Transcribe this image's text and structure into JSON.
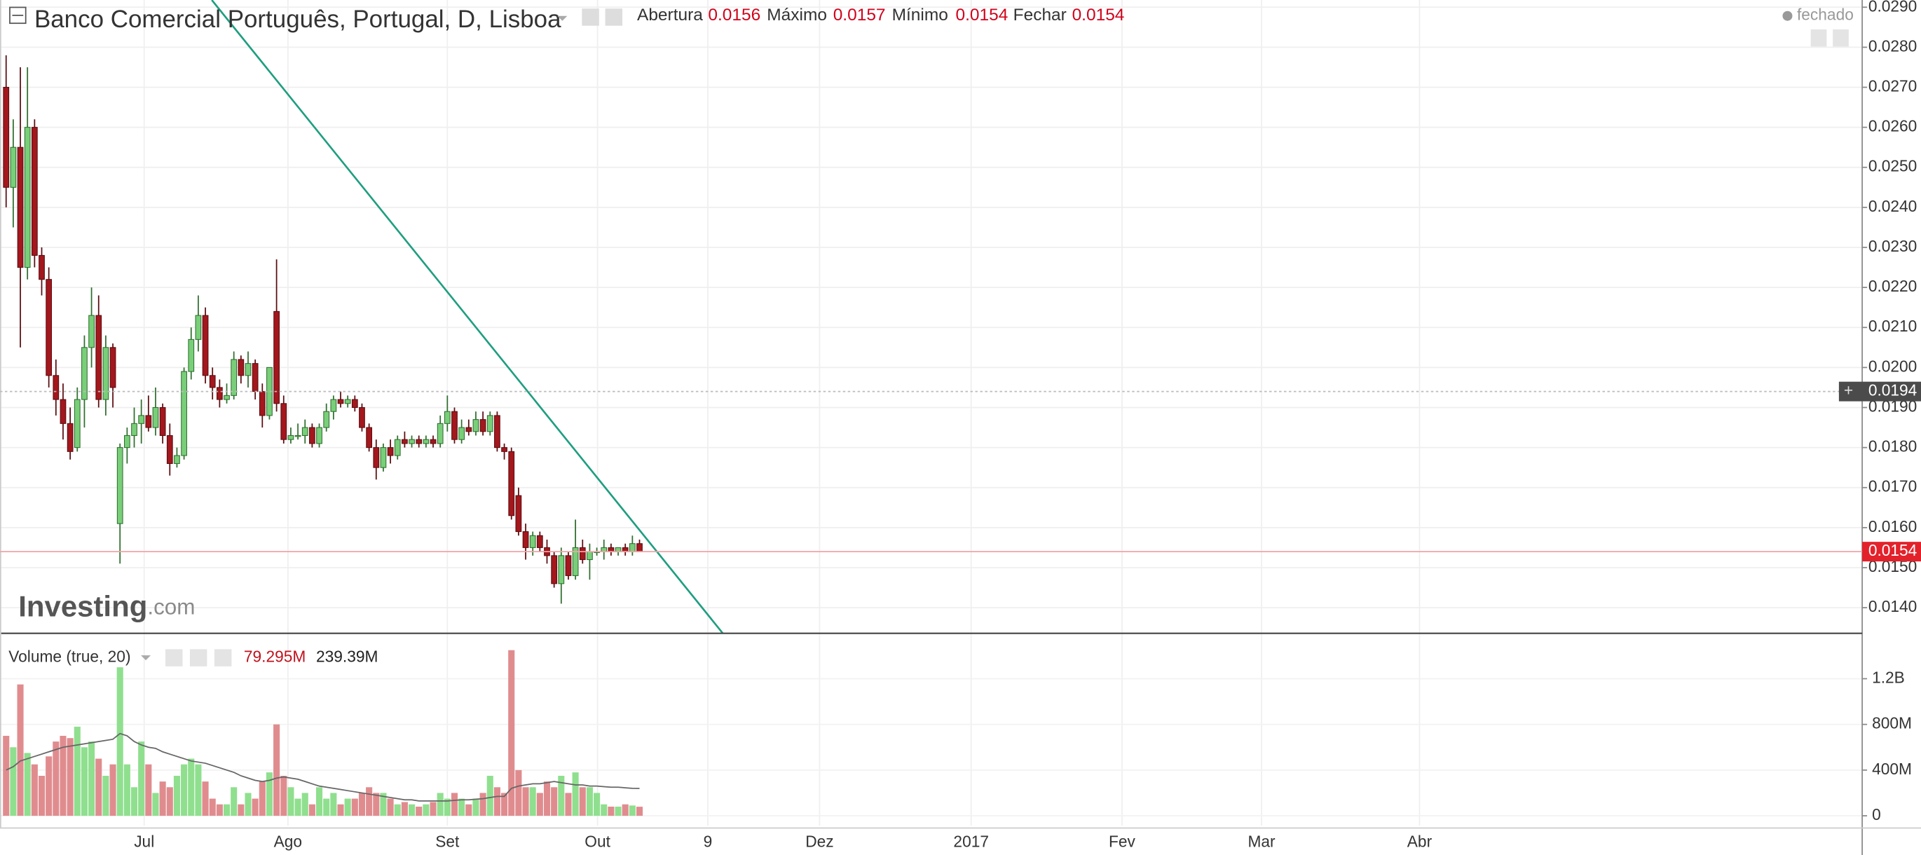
{
  "chart_data": [
    {
      "type": "candlestick",
      "title": "Banco Comercial Português, Portugal, D, Lisboa",
      "ohlc_labels": [
        "Abertura",
        "Máximo",
        "Mínimo",
        "Fechar"
      ],
      "status": "fechado",
      "watermark": [
        "Investing",
        ".com"
      ],
      "up_color": "#79cf79",
      "down_color": "#a3171d",
      "open": [
        0.027,
        0.0245,
        0.0255,
        0.0225,
        0.026,
        0.0228,
        0.0222,
        0.0198,
        0.0192,
        0.0186,
        0.018,
        0.0192,
        0.0205,
        0.0213,
        0.0192,
        0.0205,
        0.0161,
        0.018,
        0.0183,
        0.0186,
        0.0188,
        0.0185,
        0.019,
        0.0183,
        0.0176,
        0.0178,
        0.0199,
        0.0207,
        0.0213,
        0.0198,
        0.0195,
        0.0192,
        0.0193,
        0.0202,
        0.0198,
        0.0201,
        0.0194,
        0.0188,
        0.0214,
        0.0191,
        0.0182,
        0.0183,
        0.0183,
        0.0185,
        0.0181,
        0.0185,
        0.0189,
        0.0192,
        0.0191,
        0.0192,
        0.019,
        0.0185,
        0.018,
        0.0175,
        0.018,
        0.0178,
        0.0182,
        0.0181,
        0.0182,
        0.0181,
        0.0182,
        0.0181,
        0.0186,
        0.0189,
        0.0182,
        0.0185,
        0.0184,
        0.0187,
        0.0184,
        0.0188,
        0.018,
        0.0179,
        0.0168,
        0.0159,
        0.0155,
        0.0158,
        0.0155,
        0.0153,
        0.0146,
        0.0153,
        0.0148,
        0.0155,
        0.0152,
        0.0154,
        0.0154,
        0.0155,
        0.0154,
        0.0155,
        0.0154,
        0.0156
      ],
      "high": [
        0.0278,
        0.0262,
        0.0275,
        0.0275,
        0.0262,
        0.023,
        0.0225,
        0.0202,
        0.0196,
        0.019,
        0.0195,
        0.0208,
        0.022,
        0.0218,
        0.0208,
        0.0206,
        0.0181,
        0.0185,
        0.019,
        0.0192,
        0.0193,
        0.0195,
        0.0191,
        0.0186,
        0.018,
        0.02,
        0.021,
        0.0218,
        0.0215,
        0.02,
        0.0197,
        0.0196,
        0.0204,
        0.0203,
        0.0204,
        0.0202,
        0.0196,
        0.02,
        0.0227,
        0.0193,
        0.0185,
        0.0186,
        0.0187,
        0.0186,
        0.0186,
        0.0191,
        0.0193,
        0.0194,
        0.0193,
        0.0193,
        0.0191,
        0.0186,
        0.0182,
        0.0181,
        0.0182,
        0.0183,
        0.0184,
        0.0183,
        0.0183,
        0.0183,
        0.0183,
        0.0188,
        0.0193,
        0.019,
        0.0187,
        0.0187,
        0.0189,
        0.0189,
        0.0189,
        0.0189,
        0.0181,
        0.018,
        0.017,
        0.0161,
        0.0159,
        0.0159,
        0.0157,
        0.0154,
        0.0155,
        0.0154,
        0.0162,
        0.0157,
        0.0156,
        0.0155,
        0.0157,
        0.0156,
        0.0155,
        0.0156,
        0.0158,
        0.0157
      ],
      "low": [
        0.024,
        0.0235,
        0.0205,
        0.0222,
        0.0225,
        0.0218,
        0.0195,
        0.0188,
        0.0182,
        0.0177,
        0.0179,
        0.0185,
        0.02,
        0.019,
        0.0188,
        0.019,
        0.0151,
        0.0176,
        0.018,
        0.0181,
        0.0184,
        0.0183,
        0.0181,
        0.0173,
        0.0175,
        0.0177,
        0.0197,
        0.0204,
        0.0196,
        0.0192,
        0.019,
        0.0191,
        0.0192,
        0.0196,
        0.0195,
        0.0192,
        0.0185,
        0.0187,
        0.0189,
        0.0181,
        0.0181,
        0.0182,
        0.0181,
        0.018,
        0.018,
        0.0184,
        0.0187,
        0.019,
        0.019,
        0.0189,
        0.0184,
        0.0179,
        0.0172,
        0.0174,
        0.0176,
        0.0177,
        0.018,
        0.018,
        0.018,
        0.018,
        0.018,
        0.018,
        0.0184,
        0.0181,
        0.0181,
        0.0183,
        0.0183,
        0.0183,
        0.0183,
        0.0179,
        0.0177,
        0.0162,
        0.0158,
        0.0152,
        0.0153,
        0.0154,
        0.0151,
        0.0145,
        0.0141,
        0.0147,
        0.0147,
        0.0151,
        0.0147,
        0.0153,
        0.0152,
        0.0153,
        0.0153,
        0.0153,
        0.0153,
        0.0154
      ],
      "close": [
        0.0245,
        0.0255,
        0.0225,
        0.026,
        0.0228,
        0.0222,
        0.0198,
        0.0192,
        0.0186,
        0.0179,
        0.0192,
        0.0205,
        0.0213,
        0.0192,
        0.0205,
        0.0195,
        0.018,
        0.0183,
        0.0186,
        0.0188,
        0.0185,
        0.019,
        0.0183,
        0.0176,
        0.0178,
        0.0199,
        0.0207,
        0.0213,
        0.0198,
        0.0195,
        0.0192,
        0.0193,
        0.0202,
        0.0198,
        0.0201,
        0.0194,
        0.0188,
        0.02,
        0.0191,
        0.0182,
        0.0183,
        0.0183,
        0.0185,
        0.0181,
        0.0185,
        0.0189,
        0.0192,
        0.0191,
        0.0192,
        0.019,
        0.0185,
        0.018,
        0.0175,
        0.018,
        0.0178,
        0.0182,
        0.0181,
        0.0182,
        0.0181,
        0.0182,
        0.0181,
        0.0186,
        0.0189,
        0.0182,
        0.0185,
        0.0184,
        0.0187,
        0.0184,
        0.0188,
        0.018,
        0.0179,
        0.0163,
        0.0159,
        0.0155,
        0.0158,
        0.0155,
        0.0153,
        0.0146,
        0.0153,
        0.0148,
        0.0155,
        0.0152,
        0.0154,
        0.0154,
        0.0155,
        0.0154,
        0.0155,
        0.0154,
        0.0156,
        0.0154
      ],
      "crosshair_value": 0.0194,
      "trendline": {
        "x": [
          28.9,
          100.7
        ],
        "y": [
          0.02918,
          0.01336
        ],
        "color": "#1f9e80"
      },
      "xlim": [
        -0.86,
        260.8
      ],
      "xticks": [
        {
          "value": 19.4,
          "label": "Jul"
        },
        {
          "value": 39.6,
          "label": "Ago"
        },
        {
          "value": 62.0,
          "label": "Set"
        },
        {
          "value": 83.1,
          "label": "Out"
        },
        {
          "value": 98.6,
          "label": "9"
        },
        {
          "value": 114.3,
          "label": "Dez"
        },
        {
          "value": 135.6,
          "label": "2017"
        },
        {
          "value": 156.8,
          "label": "Fev"
        },
        {
          "value": 176.4,
          "label": "Mar"
        },
        {
          "value": 198.6,
          "label": "Abr"
        }
      ],
      "ylim": [
        0.01336,
        0.02918
      ],
      "yticks": [
        {
          "value": 0.014,
          "label": "0.0140"
        },
        {
          "value": 0.015,
          "label": "0.0150"
        },
        {
          "value": 0.016,
          "label": "0.0160"
        },
        {
          "value": 0.017,
          "label": "0.0170"
        },
        {
          "value": 0.018,
          "label": "0.0180"
        },
        {
          "value": 0.019,
          "label": "0.0190"
        },
        {
          "value": 0.02,
          "label": "0.0200"
        },
        {
          "value": 0.021,
          "label": "0.0210"
        },
        {
          "value": 0.022,
          "label": "0.0220"
        },
        {
          "value": 0.023,
          "label": "0.0230"
        },
        {
          "value": 0.024,
          "label": "0.0240"
        },
        {
          "value": 0.025,
          "label": "0.0250"
        },
        {
          "value": 0.026,
          "label": "0.0260"
        },
        {
          "value": 0.027,
          "label": "0.0270"
        },
        {
          "value": 0.028,
          "label": "0.0280"
        },
        {
          "value": 0.029,
          "label": "0.0290"
        }
      ],
      "grid": true
    },
    {
      "type": "bar",
      "title": "Volume (true, 20)",
      "up_color": "#8fdf8f",
      "down_color": "#e08c8f",
      "values": [
        700,
        600,
        1150,
        550,
        450,
        350,
        520,
        650,
        700,
        680,
        780,
        600,
        650,
        500,
        350,
        450,
        1300,
        450,
        250,
        650,
        450,
        200,
        300,
        250,
        350,
        450,
        500,
        450,
        300,
        150,
        100,
        100,
        250,
        100,
        200,
        150,
        300,
        380,
        800,
        350,
        250,
        150,
        200,
        100,
        250,
        150,
        200,
        100,
        150,
        150,
        200,
        250,
        200,
        200,
        150,
        100,
        120,
        100,
        80,
        100,
        120,
        200,
        150,
        200,
        150,
        100,
        150,
        200,
        350,
        250,
        200,
        1450,
        400,
        250,
        250,
        200,
        300,
        250,
        350,
        200,
        380,
        250,
        250,
        200,
        100,
        80,
        80,
        100,
        90,
        79.295
      ],
      "ma": {
        "color": "#666666",
        "values": [
          400,
          430,
          480,
          500,
          520,
          540,
          560,
          580,
          600,
          610,
          620,
          630,
          640,
          650,
          660,
          670,
          720,
          700,
          650,
          620,
          600,
          590,
          560,
          540,
          520,
          500,
          480,
          470,
          460,
          440,
          420,
          400,
          380,
          350,
          330,
          310,
          300,
          310,
          330,
          340,
          330,
          320,
          300,
          280,
          260,
          250,
          240,
          230,
          220,
          210,
          200,
          190,
          180,
          170,
          160,
          150,
          140,
          140,
          130,
          130,
          130,
          130,
          130,
          135,
          140,
          140,
          145,
          150,
          160,
          170,
          170,
          240,
          260,
          270,
          280,
          280,
          290,
          300,
          290,
          280,
          270,
          270,
          260,
          260,
          255,
          250,
          250,
          245,
          240,
          239.39
        ]
      },
      "volume_readout": {
        "value": 79.295,
        "label": "79.295M"
      },
      "ma_readout": {
        "value": 239.39,
        "label": "239.39M"
      },
      "ylim": [
        -86,
        1587
      ],
      "yticks": [
        0,
        {
          "value": 400,
          "label": "400M"
        },
        {
          "value": 800,
          "label": "800M"
        },
        {
          "value": 1200,
          "label": "1.2B"
        }
      ]
    }
  ]
}
